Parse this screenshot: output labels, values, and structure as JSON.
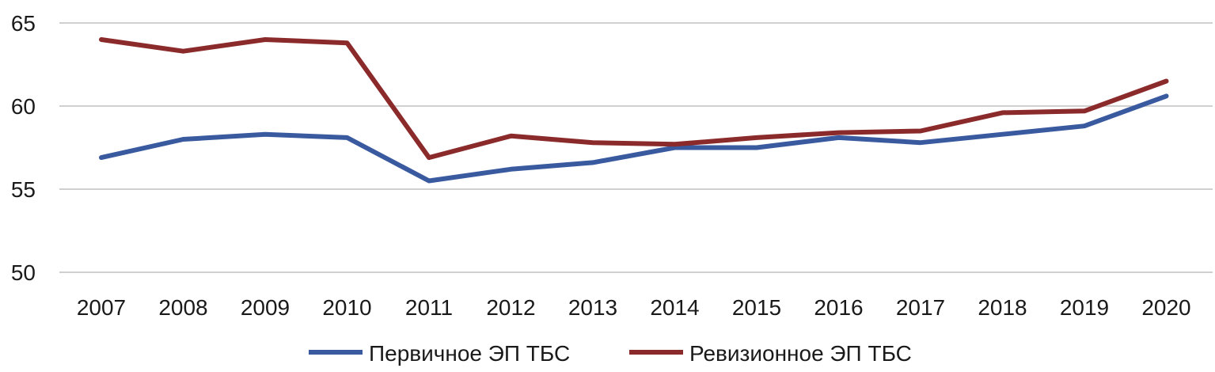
{
  "chart_data": {
    "type": "line",
    "x": [
      "2007",
      "2008",
      "2009",
      "2010",
      "2011",
      "2012",
      "2013",
      "2014",
      "2015",
      "2016",
      "2017",
      "2018",
      "2019",
      "2020"
    ],
    "ylim": [
      50,
      65
    ],
    "yticks": [
      50,
      55,
      60,
      65
    ],
    "grid": true,
    "legend_position": "bottom",
    "series": [
      {
        "name": "Первичное ЭП ТБС",
        "color": "#3a5aa0",
        "values": [
          56.9,
          58.0,
          58.3,
          58.1,
          55.5,
          56.2,
          56.6,
          57.5,
          57.5,
          58.1,
          57.8,
          58.3,
          58.8,
          60.6
        ]
      },
      {
        "name": "Ревизионное ЭП ТБС",
        "color": "#8b2a2a",
        "values": [
          64.0,
          63.3,
          64.0,
          63.8,
          56.9,
          58.2,
          57.8,
          57.7,
          58.1,
          58.4,
          58.5,
          59.6,
          59.7,
          61.5
        ]
      }
    ]
  }
}
